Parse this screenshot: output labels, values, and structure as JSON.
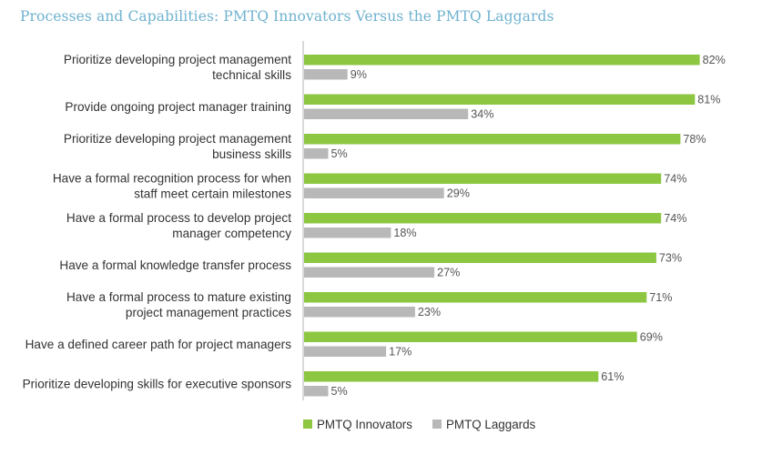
{
  "chart_data": {
    "type": "bar",
    "orientation": "horizontal",
    "title": "Processes and Capabilities: PMTQ Innovators Versus the PMTQ Laggards",
    "categories": [
      [
        "Prioritize developing project management",
        "technical skills"
      ],
      [
        "Provide ongoing project manager training"
      ],
      [
        "Prioritize developing project management",
        "business skills"
      ],
      [
        "Have a formal recognition process for when",
        "staff meet certain milestones"
      ],
      [
        "Have a formal process to develop project",
        "manager competency"
      ],
      [
        "Have a formal knowledge transfer process"
      ],
      [
        "Have a formal process to mature existing",
        "project management practices"
      ],
      [
        "Have a defined career path for project managers"
      ],
      [
        "Prioritize developing skills for executive sponsors"
      ]
    ],
    "series": [
      {
        "name": "PMTQ Innovators",
        "color": "#8dc641",
        "values": [
          82,
          81,
          78,
          74,
          74,
          73,
          71,
          69,
          61
        ],
        "labels": [
          "82%",
          "81%",
          "78%",
          "74%",
          "74%",
          "73%",
          "71%",
          "69%",
          "61%"
        ]
      },
      {
        "name": "PMTQ Laggards",
        "color": "#b8b8b8",
        "values": [
          9,
          34,
          5,
          29,
          18,
          27,
          23,
          17,
          5
        ],
        "labels": [
          "9%",
          "34%",
          "5%",
          "29%",
          "18%",
          "27%",
          "23%",
          "17%",
          "5%"
        ]
      }
    ],
    "xlim": [
      0,
      100
    ],
    "grid": false,
    "legend_position": "bottom"
  },
  "colors": {
    "title": "#6fb2cf",
    "axis": "#bdbdbd"
  }
}
